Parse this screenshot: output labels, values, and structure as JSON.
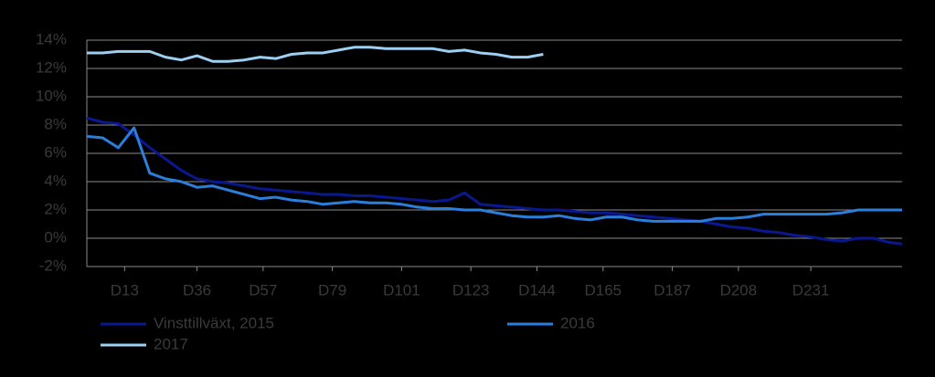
{
  "chart_data": {
    "type": "line",
    "x": [
      1,
      6,
      11,
      16,
      21,
      26,
      31,
      36,
      41,
      46,
      51,
      56,
      61,
      66,
      71,
      76,
      81,
      86,
      91,
      96,
      101,
      106,
      111,
      116,
      121,
      126,
      131,
      136,
      141,
      146,
      151,
      156,
      161,
      166,
      171,
      176,
      181,
      186,
      191,
      196,
      201,
      206,
      211,
      216,
      221,
      226,
      231,
      236,
      241,
      246,
      251,
      256,
      260
    ],
    "series": [
      {
        "name": "Vinsttillväxt, 2015",
        "color": "#0a1890",
        "values": [
          8.5,
          8.2,
          8.1,
          7.3,
          6.4,
          5.6,
          4.8,
          4.2,
          4.0,
          3.9,
          3.7,
          3.5,
          3.4,
          3.3,
          3.2,
          3.1,
          3.1,
          3.0,
          3.0,
          2.9,
          2.8,
          2.7,
          2.6,
          2.7,
          3.2,
          2.4,
          2.3,
          2.2,
          2.1,
          2.0,
          2.0,
          1.9,
          1.8,
          1.8,
          1.7,
          1.6,
          1.5,
          1.4,
          1.3,
          1.2,
          1.0,
          0.8,
          0.7,
          0.5,
          0.4,
          0.2,
          0.1,
          -0.1,
          -0.2,
          0.0,
          0.0,
          -0.3,
          -0.4
        ]
      },
      {
        "name": "2016",
        "color": "#2a7fdc",
        "values": [
          7.2,
          7.1,
          6.4,
          7.8,
          4.6,
          4.2,
          4.0,
          3.6,
          3.7,
          3.4,
          3.1,
          2.8,
          2.9,
          2.7,
          2.6,
          2.4,
          2.5,
          2.6,
          2.5,
          2.5,
          2.4,
          2.2,
          2.1,
          2.1,
          2.0,
          2.0,
          1.8,
          1.6,
          1.5,
          1.5,
          1.6,
          1.4,
          1.3,
          1.5,
          1.5,
          1.3,
          1.2,
          1.2,
          1.2,
          1.2,
          1.4,
          1.4,
          1.5,
          1.7,
          1.7,
          1.7,
          1.7,
          1.7,
          1.8,
          2.0,
          2.0,
          2.0,
          2.0
        ]
      },
      {
        "name": "2017",
        "color": "#9ccff2",
        "values": [
          13.1,
          13.1,
          13.2,
          13.2,
          13.2,
          12.8,
          12.6,
          12.9,
          12.5,
          12.5,
          12.6,
          12.8,
          12.7,
          13.0,
          13.1,
          13.1,
          13.3,
          13.5,
          13.5,
          13.4,
          13.4,
          13.4,
          13.4,
          13.2,
          13.3,
          13.1,
          13.0,
          12.8,
          12.8,
          13.0,
          null,
          null,
          null,
          null,
          null,
          null,
          null,
          null,
          null,
          null,
          null,
          null,
          null,
          null,
          null,
          null,
          null,
          null,
          null,
          null,
          null,
          null,
          null
        ]
      }
    ],
    "xlim": [
      1,
      260
    ],
    "xticks": [
      {
        "value": 13,
        "label": "D13"
      },
      {
        "value": 36,
        "label": "D36"
      },
      {
        "value": 57,
        "label": "D57"
      },
      {
        "value": 79,
        "label": "D79"
      },
      {
        "value": 101,
        "label": "D101"
      },
      {
        "value": 123,
        "label": "D123"
      },
      {
        "value": 144,
        "label": "D144"
      },
      {
        "value": 165,
        "label": "D165"
      },
      {
        "value": 187,
        "label": "D187"
      },
      {
        "value": 208,
        "label": "D208"
      },
      {
        "value": 231,
        "label": "D231"
      }
    ],
    "ylim": [
      -2,
      14
    ],
    "yticks": [
      {
        "value": -2,
        "label": "-2%"
      },
      {
        "value": 0,
        "label": "0%"
      },
      {
        "value": 2,
        "label": "2%"
      },
      {
        "value": 4,
        "label": "4%"
      },
      {
        "value": 6,
        "label": "6%"
      },
      {
        "value": 8,
        "label": "8%"
      },
      {
        "value": 10,
        "label": "10%"
      },
      {
        "value": 12,
        "label": "12%"
      },
      {
        "value": 14,
        "label": "14%"
      }
    ],
    "grid": true,
    "legend": "bottom"
  }
}
